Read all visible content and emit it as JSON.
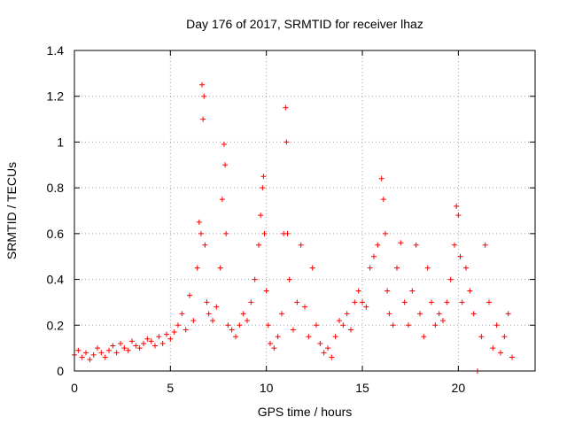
{
  "chart_data": {
    "type": "scatter",
    "title": "Day 176 of 2017, SRMTID for receiver lhaz",
    "xlabel": "GPS time / hours",
    "ylabel": "SRMTID / TECUs",
    "xlim": [
      0,
      24
    ],
    "ylim": [
      0,
      1.4
    ],
    "xticks": [
      0,
      5,
      10,
      15,
      20
    ],
    "xtick_labels": [
      "0",
      "5",
      "10",
      "15",
      "20"
    ],
    "yticks": [
      0,
      0.2,
      0.4,
      0.6,
      0.8,
      1.0,
      1.2,
      1.4
    ],
    "ytick_labels": [
      "0",
      "0.2",
      "0.4",
      "0.6",
      "0.8",
      "1",
      "1.2",
      "1.4"
    ],
    "grid": true,
    "marker": "+",
    "marker_color": "#ff0000",
    "series": [
      {
        "name": "SRMTID",
        "x": [
          0.0,
          0.2,
          0.4,
          0.6,
          0.8,
          1.0,
          1.2,
          1.4,
          1.6,
          1.8,
          2.0,
          2.2,
          2.4,
          2.6,
          2.8,
          3.0,
          3.2,
          3.4,
          3.6,
          3.8,
          4.0,
          4.2,
          4.4,
          4.6,
          4.8,
          5.0,
          5.2,
          5.4,
          5.6,
          5.8,
          6.0,
          6.2,
          6.4,
          6.5,
          6.6,
          6.65,
          6.7,
          6.75,
          6.8,
          6.9,
          7.0,
          7.2,
          7.4,
          7.6,
          7.7,
          7.8,
          7.85,
          7.9,
          8.0,
          8.2,
          8.4,
          8.6,
          8.8,
          9.0,
          9.2,
          9.4,
          9.6,
          9.7,
          9.8,
          9.85,
          9.9,
          10.0,
          10.1,
          10.2,
          10.4,
          10.6,
          10.8,
          10.9,
          11.0,
          11.05,
          11.1,
          11.2,
          11.4,
          11.6,
          11.8,
          12.0,
          12.2,
          12.4,
          12.6,
          12.8,
          13.0,
          13.2,
          13.4,
          13.6,
          13.8,
          14.0,
          14.2,
          14.4,
          14.6,
          14.8,
          15.0,
          15.2,
          15.4,
          15.6,
          15.8,
          16.0,
          16.1,
          16.2,
          16.3,
          16.4,
          16.6,
          16.8,
          17.0,
          17.2,
          17.4,
          17.6,
          17.8,
          18.0,
          18.2,
          18.4,
          18.6,
          18.8,
          19.0,
          19.2,
          19.4,
          19.6,
          19.8,
          19.9,
          20.0,
          20.1,
          20.2,
          20.4,
          20.6,
          20.8,
          21.0,
          21.2,
          21.4,
          21.6,
          21.8,
          22.0,
          22.2,
          22.4,
          22.6,
          22.8
        ],
        "y": [
          0.07,
          0.09,
          0.06,
          0.08,
          0.05,
          0.07,
          0.1,
          0.08,
          0.06,
          0.09,
          0.11,
          0.08,
          0.12,
          0.1,
          0.09,
          0.13,
          0.11,
          0.1,
          0.12,
          0.14,
          0.13,
          0.11,
          0.15,
          0.12,
          0.16,
          0.14,
          0.17,
          0.2,
          0.25,
          0.18,
          0.33,
          0.22,
          0.45,
          0.65,
          0.6,
          1.25,
          1.1,
          1.2,
          0.55,
          0.3,
          0.25,
          0.22,
          0.28,
          0.45,
          0.75,
          0.99,
          0.9,
          0.6,
          0.2,
          0.18,
          0.15,
          0.2,
          0.25,
          0.22,
          0.3,
          0.4,
          0.55,
          0.68,
          0.8,
          0.85,
          0.6,
          0.35,
          0.2,
          0.12,
          0.1,
          0.15,
          0.25,
          0.6,
          1.15,
          1.0,
          0.6,
          0.4,
          0.18,
          0.3,
          0.55,
          0.28,
          0.15,
          0.45,
          0.2,
          0.12,
          0.08,
          0.1,
          0.06,
          0.15,
          0.22,
          0.2,
          0.25,
          0.18,
          0.3,
          0.35,
          0.3,
          0.28,
          0.45,
          0.5,
          0.55,
          0.84,
          0.75,
          0.6,
          0.35,
          0.25,
          0.2,
          0.45,
          0.56,
          0.3,
          0.2,
          0.35,
          0.55,
          0.25,
          0.15,
          0.45,
          0.3,
          0.2,
          0.25,
          0.22,
          0.3,
          0.4,
          0.55,
          0.72,
          0.68,
          0.5,
          0.3,
          0.45,
          0.35,
          0.25,
          0.0,
          0.15,
          0.55,
          0.3,
          0.1,
          0.2,
          0.08,
          0.15,
          0.25,
          0.06
        ]
      }
    ]
  }
}
